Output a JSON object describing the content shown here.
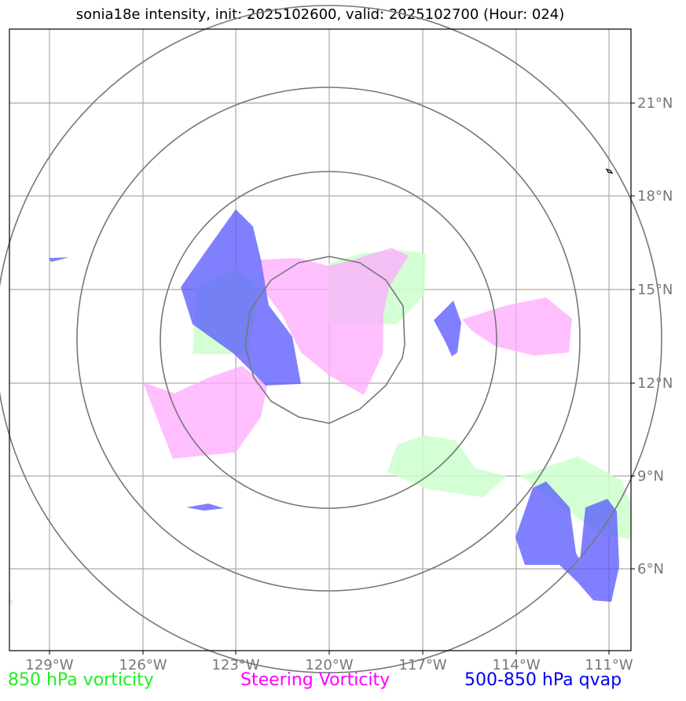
{
  "title": "sonia18e intensity, init: 2025102600, valid: 2025102700 (Hour: 024)",
  "axes": {
    "lon_labels": [
      "129°W",
      "126°W",
      "123°W",
      "120°W",
      "117°W",
      "114°W",
      "111°W"
    ],
    "lat_labels": [
      "21°N",
      "18°N",
      "15°N",
      "12°N",
      "9°N",
      "6°N"
    ]
  },
  "legend": {
    "vorticity_850": "850 hPa vorticity",
    "steering_vorticity": "Steering Vorticity",
    "qvap": "500-850 hPa qvap"
  },
  "colors": {
    "vorticity_850": "#ccffcc",
    "steering_vorticity": "#ffaaff",
    "qvap": "#5555ff",
    "range_rings": "#777777",
    "gridlines": "#aaaaaa",
    "tick_labels": "#777777"
  }
}
